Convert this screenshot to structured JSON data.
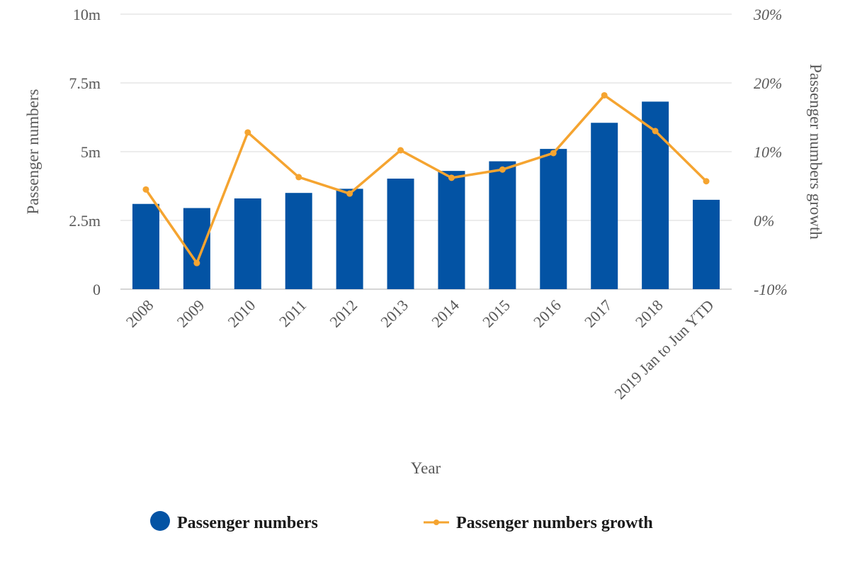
{
  "chart_data": {
    "type": "bar",
    "title": "",
    "categories": [
      "2008",
      "2009",
      "2010",
      "2011",
      "2012",
      "2013",
      "2014",
      "2015",
      "2016",
      "2017",
      "2018",
      "2019 Jan to Jun YTD"
    ],
    "series": [
      {
        "name": "Passenger numbers",
        "type": "bar",
        "axis": "left",
        "color": "#0353a4",
        "values": [
          3.1,
          2.95,
          3.3,
          3.5,
          3.65,
          4.02,
          4.3,
          4.65,
          5.1,
          6.05,
          6.82,
          3.25
        ]
      },
      {
        "name": "Passenger numbers growth",
        "type": "line",
        "axis": "right",
        "color": "#f5a430",
        "values": [
          4.5,
          -6.2,
          12.8,
          6.3,
          3.9,
          10.2,
          6.2,
          7.4,
          9.8,
          18.2,
          13.0,
          5.7
        ]
      }
    ],
    "xlabel": "Year",
    "ylabel": "Passenger numbers",
    "y2label": "Passenger numbers growth",
    "ylim": [
      0,
      10
    ],
    "y2lim": [
      -10,
      30
    ],
    "y_unit": "million",
    "y2_unit": "percent",
    "y_ticks": [
      "0",
      "2.5m",
      "5m",
      "7.5m",
      "10m"
    ],
    "y2_ticks": [
      "-10%",
      "0%",
      "10%",
      "20%",
      "30%"
    ],
    "grid": true,
    "legend": "bottom"
  }
}
